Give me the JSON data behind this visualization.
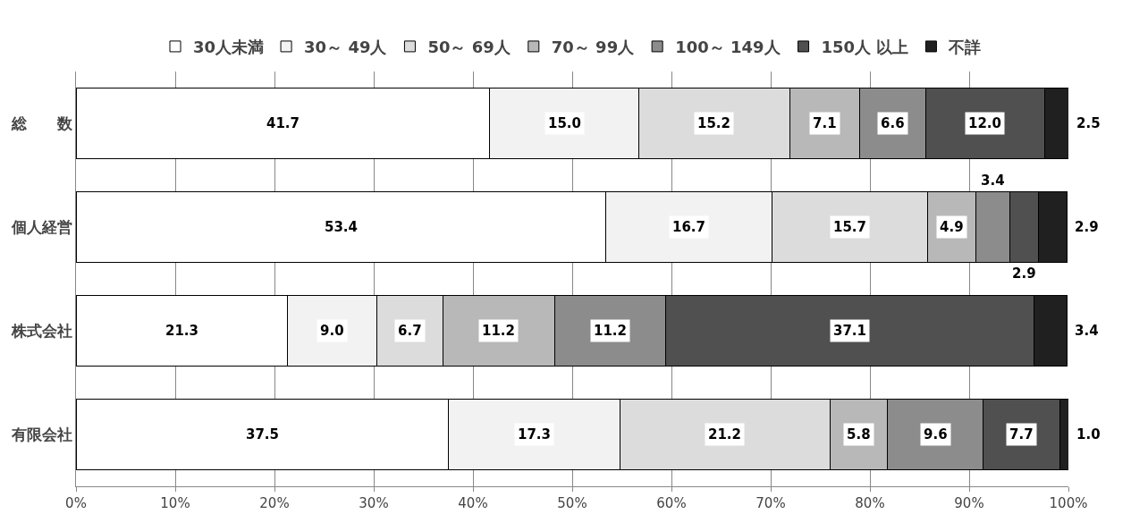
{
  "chart_data": {
    "type": "bar",
    "orientation": "horizontal",
    "stacked": true,
    "categories": [
      "総　　数",
      "個人経営",
      "株式会社",
      "有限会社"
    ],
    "series": [
      {
        "name": "30人未満",
        "color": "#ffffff",
        "values": [
          41.7,
          53.4,
          21.3,
          37.5
        ],
        "value_labels": [
          "41.7",
          "53.4",
          "21.3",
          "37.5"
        ]
      },
      {
        "name": "30～ 49人",
        "color": "#f2f2f2",
        "values": [
          15.0,
          16.7,
          9.0,
          17.3
        ],
        "value_labels": [
          "15.0",
          "16.7",
          "9.0",
          "17.3"
        ]
      },
      {
        "name": "50～ 69人",
        "color": "#dcdcdc",
        "values": [
          15.2,
          15.7,
          6.7,
          21.2
        ],
        "value_labels": [
          "15.2",
          "15.7",
          "6.7",
          "21.2"
        ]
      },
      {
        "name": "70～ 99人",
        "color": "#b8b8b8",
        "values": [
          7.1,
          4.9,
          11.2,
          5.8
        ],
        "value_labels": [
          "7.1",
          "4.9",
          "11.2",
          "5.8"
        ]
      },
      {
        "name": "100～ 149人",
        "color": "#8c8c8c",
        "values": [
          6.6,
          3.4,
          11.2,
          9.6
        ],
        "value_labels": [
          "6.6",
          "3.4",
          "11.2",
          "9.6"
        ]
      },
      {
        "name": "150人 以上",
        "color": "#505050",
        "values": [
          12.0,
          2.9,
          37.1,
          7.7
        ],
        "value_labels": [
          "12.0",
          "2.9",
          "37.1",
          "7.7"
        ]
      },
      {
        "name": "不詳",
        "color": "#202020",
        "values": [
          2.5,
          2.9,
          3.4,
          1.0
        ],
        "value_labels": [
          "2.5",
          "2.9",
          "3.4",
          "1.0"
        ]
      }
    ],
    "xlim": [
      0,
      100
    ],
    "xticks": [
      {
        "value": 0,
        "label": "0%"
      },
      {
        "value": 10,
        "label": "10%"
      },
      {
        "value": 20,
        "label": "20%"
      },
      {
        "value": 30,
        "label": "30%"
      },
      {
        "value": 40,
        "label": "40%"
      },
      {
        "value": 50,
        "label": "50%"
      },
      {
        "value": 60,
        "label": "60%"
      },
      {
        "value": 70,
        "label": "70%"
      },
      {
        "value": 80,
        "label": "80%"
      },
      {
        "value": 90,
        "label": "90%"
      },
      {
        "value": 100,
        "label": "100%"
      }
    ],
    "grid": "x",
    "legend": "top"
  }
}
